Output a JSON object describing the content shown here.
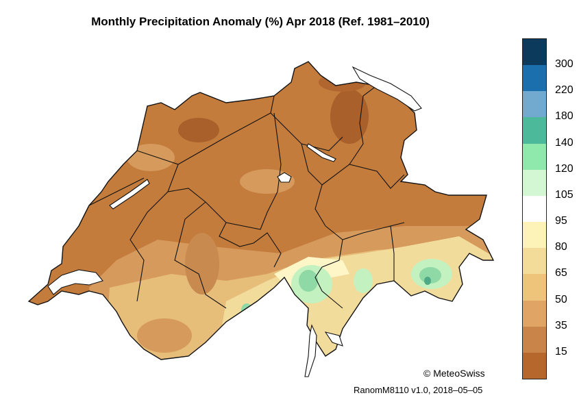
{
  "title": "Monthly Precipitation Anomaly (%) Apr 2018  (Ref. 1981–2010)",
  "legend": {
    "colors": [
      "#0b3a5c",
      "#1b6fad",
      "#71a9cf",
      "#4bb99a",
      "#8fe8ac",
      "#d3f7d3",
      "#ffffff",
      "#fdf3b8",
      "#f3dc9a",
      "#eec37a",
      "#e0a465",
      "#c9844a",
      "#b5672c"
    ],
    "ticks": [
      "300",
      "220",
      "180",
      "140",
      "120",
      "105",
      "95",
      "80",
      "65",
      "50",
      "35",
      "15"
    ]
  },
  "copyright": "© MeteoSwiss",
  "version": "RanomM8110 v1.0, 2018–05–05",
  "palette": {
    "dry_dark": "#a9602a",
    "dry": "#c47c3c",
    "dry_light": "#d59a5c",
    "mid": "#e7bd7a",
    "near_normal": "#f2dc9c",
    "wet_light": "#c4f1c0",
    "wet": "#8ed9a6",
    "wet_dark": "#4fa985",
    "border": "#111111",
    "water": "#ffffff"
  }
}
